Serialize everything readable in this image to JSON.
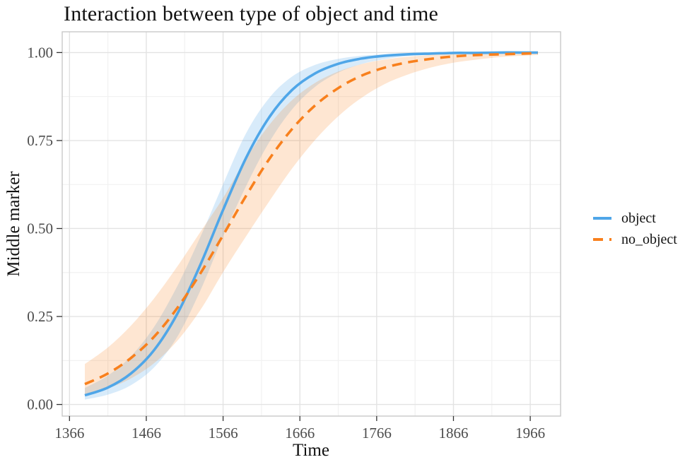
{
  "figure": {
    "background": "#ffffff"
  },
  "chart_data": {
    "type": "line",
    "title": "Interaction between type of object and time",
    "xlabel": "Time",
    "ylabel": "Middle marker",
    "legend_position": "right",
    "grid": "major+minor",
    "panel_border": true,
    "xlim": [
      1356.5,
      2005.5
    ],
    "ylim": [
      -0.033,
      1.059
    ],
    "x_ticks": [
      1366,
      1466,
      1566,
      1666,
      1766,
      1866,
      1966
    ],
    "x_tick_labels": [
      "1366",
      "1466",
      "1566",
      "1666",
      "1766",
      "1866",
      "1966"
    ],
    "y_ticks": [
      0,
      0.25,
      0.5,
      0.75,
      1
    ],
    "y_tick_labels": [
      "0.00",
      "0.25",
      "0.50",
      "0.75",
      "1.00"
    ],
    "x": [
      1386,
      1416,
      1446,
      1476,
      1506,
      1536,
      1566,
      1596,
      1626,
      1656,
      1686,
      1716,
      1746,
      1776,
      1806,
      1836,
      1866,
      1896,
      1926,
      1956,
      1976
    ],
    "series": [
      {
        "name": "object",
        "line_style": "solid",
        "color": "#4FA6E8",
        "fill": "rgba(79,166,232,0.22)",
        "values": [
          0.026,
          0.048,
          0.088,
          0.154,
          0.256,
          0.395,
          0.553,
          0.701,
          0.816,
          0.894,
          0.941,
          0.968,
          0.983,
          0.991,
          0.995,
          0.997,
          0.999,
          0.999,
          1.0,
          1.0,
          1.0
        ],
        "upper": [
          0.047,
          0.082,
          0.137,
          0.22,
          0.335,
          0.474,
          0.626,
          0.771,
          0.871,
          0.932,
          0.965,
          0.982,
          0.991,
          0.995,
          0.998,
          0.999,
          0.999,
          1.0,
          1.0,
          1.0,
          1.0
        ],
        "lower": [
          0.014,
          0.028,
          0.055,
          0.105,
          0.191,
          0.322,
          0.478,
          0.621,
          0.745,
          0.839,
          0.903,
          0.943,
          0.967,
          0.981,
          0.99,
          0.994,
          0.997,
          0.998,
          0.999,
          0.999,
          1.0
        ]
      },
      {
        "name": "no_object",
        "line_style": "dashed",
        "color": "#F8801D",
        "fill": "rgba(248,128,29,0.20)",
        "values": [
          0.058,
          0.088,
          0.132,
          0.192,
          0.273,
          0.371,
          0.481,
          0.593,
          0.697,
          0.783,
          0.85,
          0.899,
          0.934,
          0.957,
          0.972,
          0.982,
          0.989,
          0.993,
          0.995,
          0.997,
          0.998
        ],
        "upper": [
          0.115,
          0.162,
          0.224,
          0.301,
          0.391,
          0.489,
          0.587,
          0.699,
          0.794,
          0.865,
          0.914,
          0.946,
          0.967,
          0.98,
          0.988,
          0.993,
          0.996,
          0.997,
          0.998,
          0.999,
          0.999
        ],
        "lower": [
          0.028,
          0.046,
          0.074,
          0.117,
          0.18,
          0.267,
          0.376,
          0.478,
          0.577,
          0.671,
          0.752,
          0.819,
          0.871,
          0.91,
          0.937,
          0.957,
          0.971,
          0.98,
          0.987,
          0.991,
          0.993
        ]
      }
    ],
    "colors": {
      "grid_major": "#e3e3e3",
      "grid_minor": "#f1f1f1",
      "panel_border": "#c9c9c9",
      "tick_mark": "#333333",
      "tick_label": "#4d4d4d"
    }
  },
  "legend": {
    "items": [
      {
        "label": "object"
      },
      {
        "label": "no_object"
      }
    ]
  }
}
